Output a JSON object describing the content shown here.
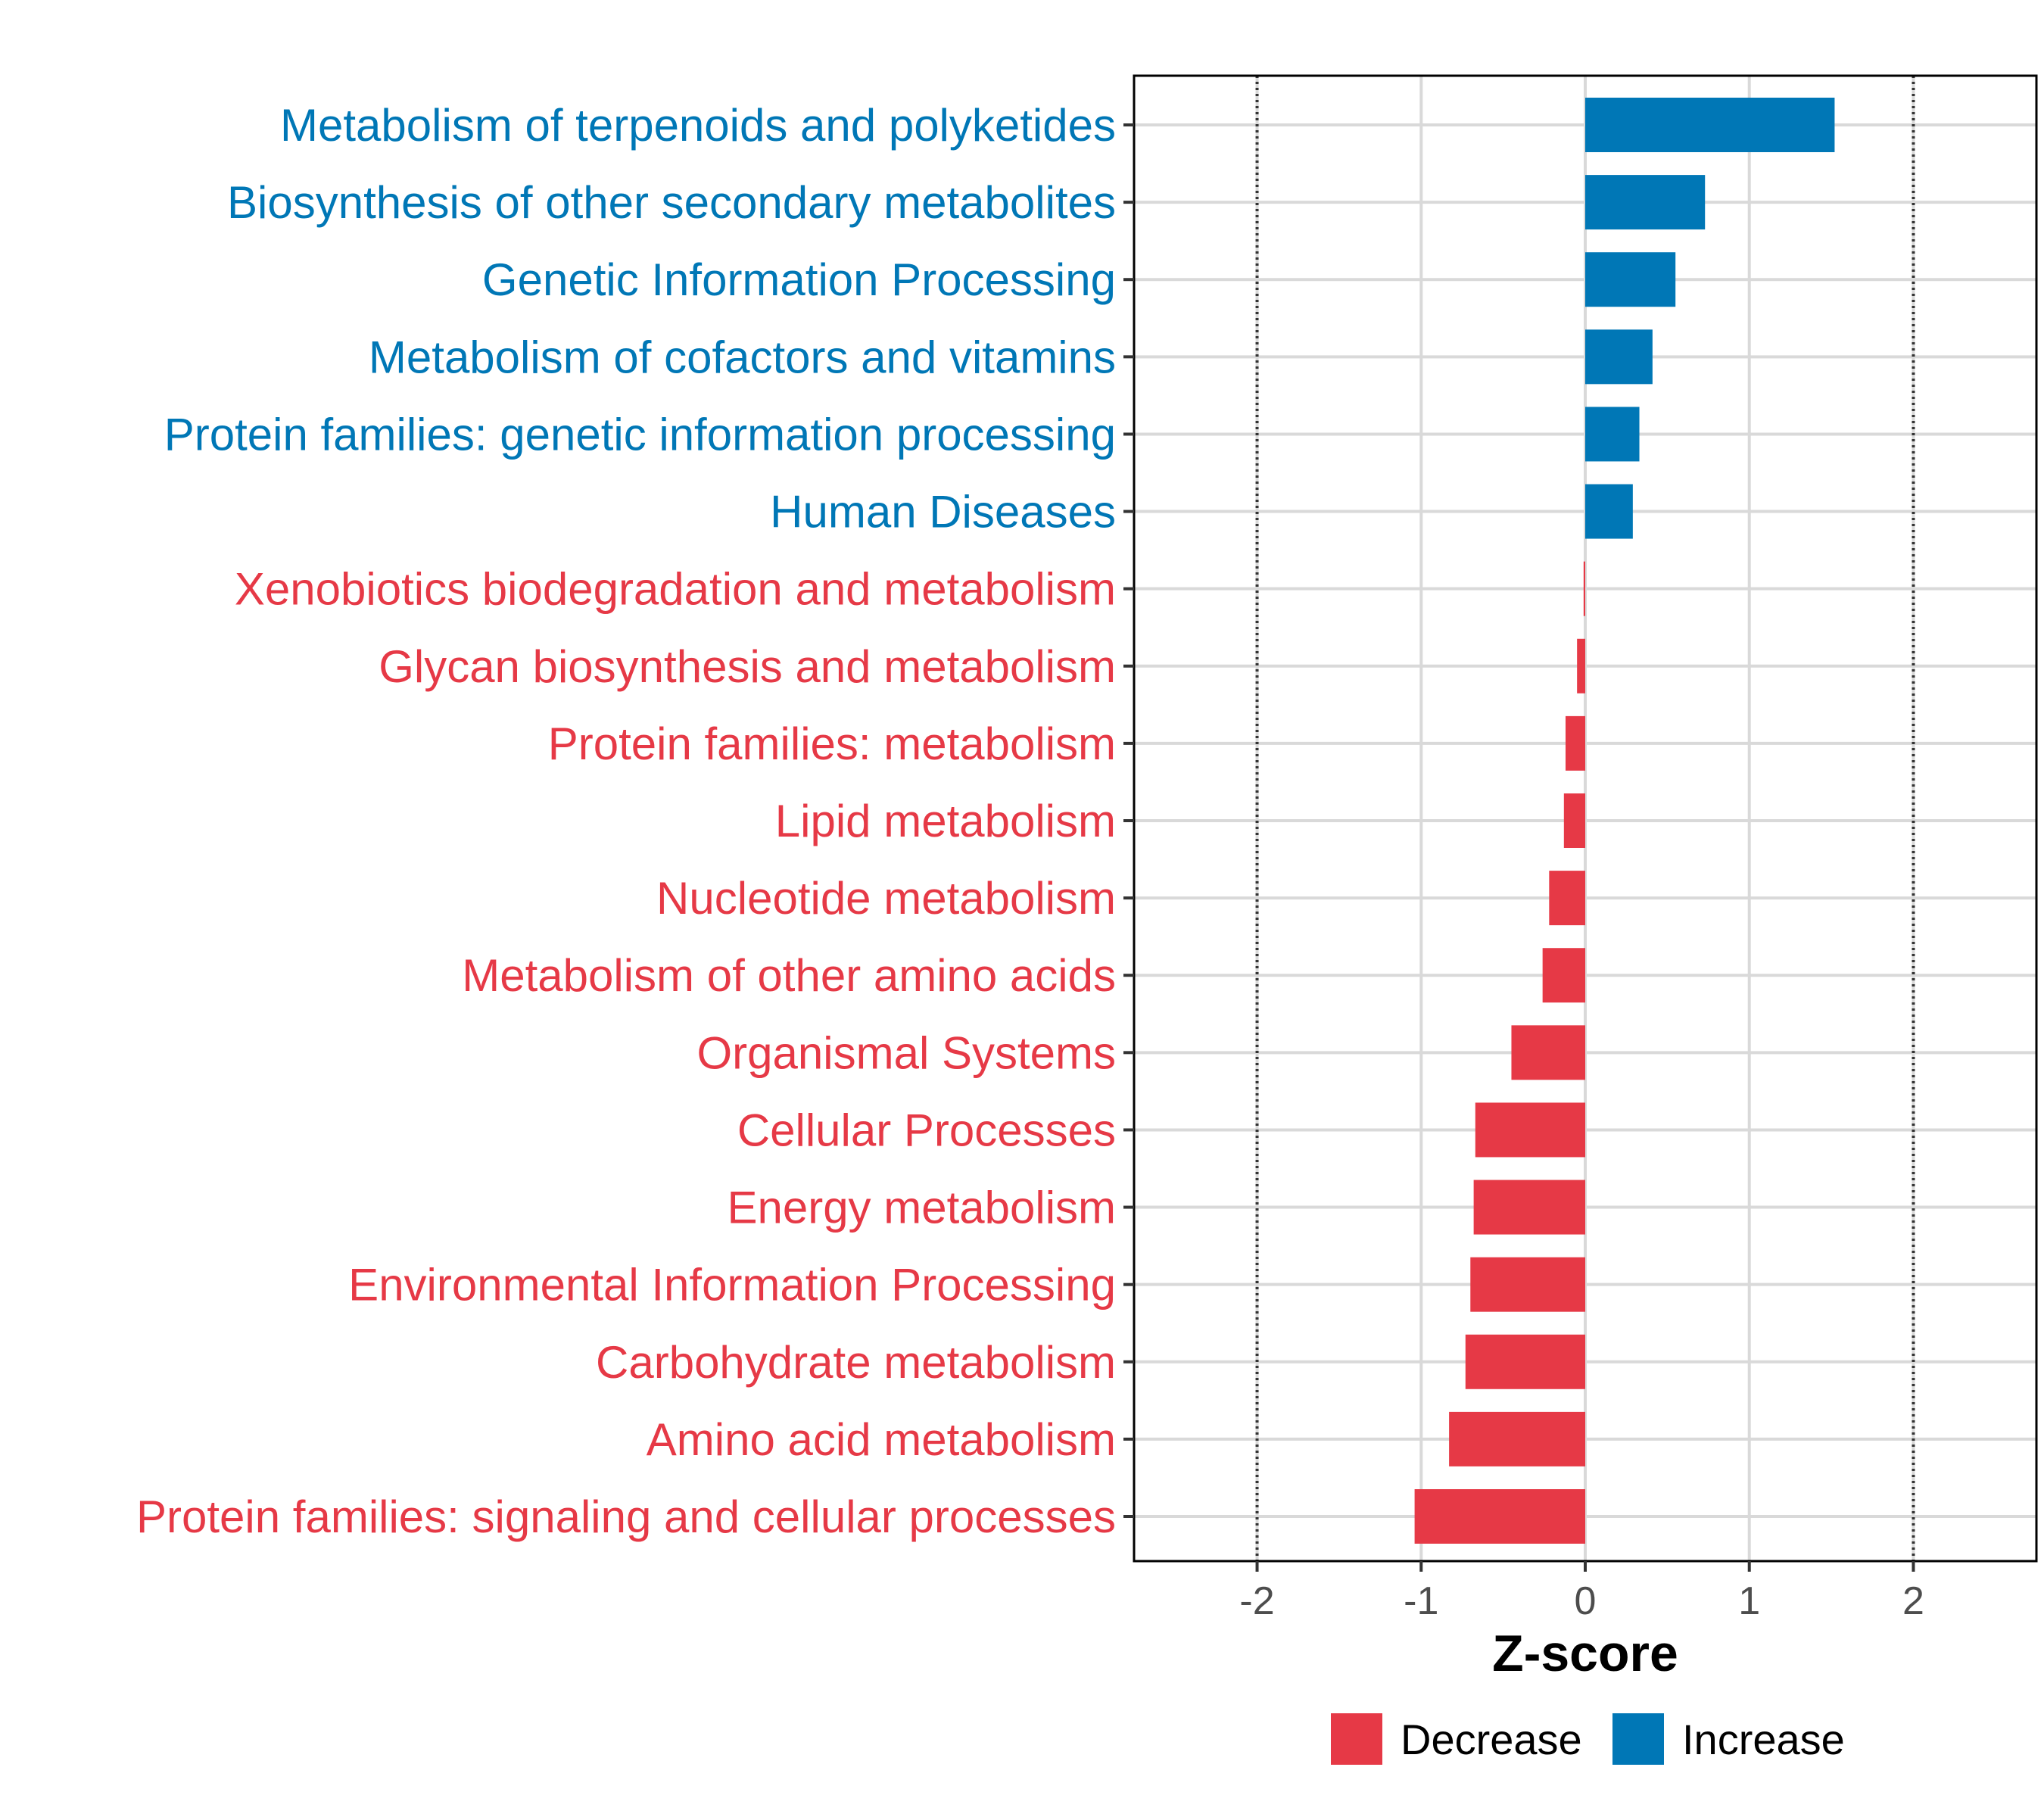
{
  "chart_data": {
    "type": "bar",
    "orientation": "horizontal",
    "xlabel": "Z-score",
    "ylabel": "",
    "xlim": [
      -2.75,
      2.75
    ],
    "xticks": [
      -2,
      -1,
      0,
      1,
      2
    ],
    "xtick_labels": [
      "-2",
      "-1",
      "0",
      "1",
      "2"
    ],
    "reference_lines": [
      -2,
      2
    ],
    "grid": true,
    "categories": [
      "Metabolism of terpenoids and polyketides",
      "Biosynthesis of other secondary metabolites",
      "Genetic Information Processing",
      "Metabolism of cofactors and vitamins",
      "Protein families: genetic information processing",
      "Human Diseases",
      "Xenobiotics biodegradation and metabolism",
      "Glycan biosynthesis and metabolism",
      "Protein families: metabolism",
      "Lipid metabolism",
      "Nucleotide metabolism",
      "Metabolism of other amino acids",
      "Organismal Systems",
      "Cellular Processes",
      "Energy metabolism",
      "Environmental Information Processing",
      "Carbohydrate metabolism",
      "Amino acid metabolism",
      "Protein families: signaling and cellular processes"
    ],
    "values": [
      1.52,
      0.73,
      0.55,
      0.41,
      0.33,
      0.29,
      -0.01,
      -0.05,
      -0.12,
      -0.13,
      -0.22,
      -0.26,
      -0.45,
      -0.67,
      -0.68,
      -0.7,
      -0.73,
      -0.83,
      -1.04
    ],
    "groups": [
      "Increase",
      "Increase",
      "Increase",
      "Increase",
      "Increase",
      "Increase",
      "Decrease",
      "Decrease",
      "Decrease",
      "Decrease",
      "Decrease",
      "Decrease",
      "Decrease",
      "Decrease",
      "Decrease",
      "Decrease",
      "Decrease",
      "Decrease",
      "Decrease"
    ],
    "legend": {
      "position": "bottom",
      "entries": [
        {
          "label": "Decrease",
          "color": "#E63946"
        },
        {
          "label": "Increase",
          "color": "#0077B6"
        }
      ]
    },
    "colors": {
      "Increase": "#0077B6",
      "Decrease": "#E63946",
      "grid": "#d9d9d9",
      "axis": "#000000",
      "reference": "#333333"
    }
  }
}
